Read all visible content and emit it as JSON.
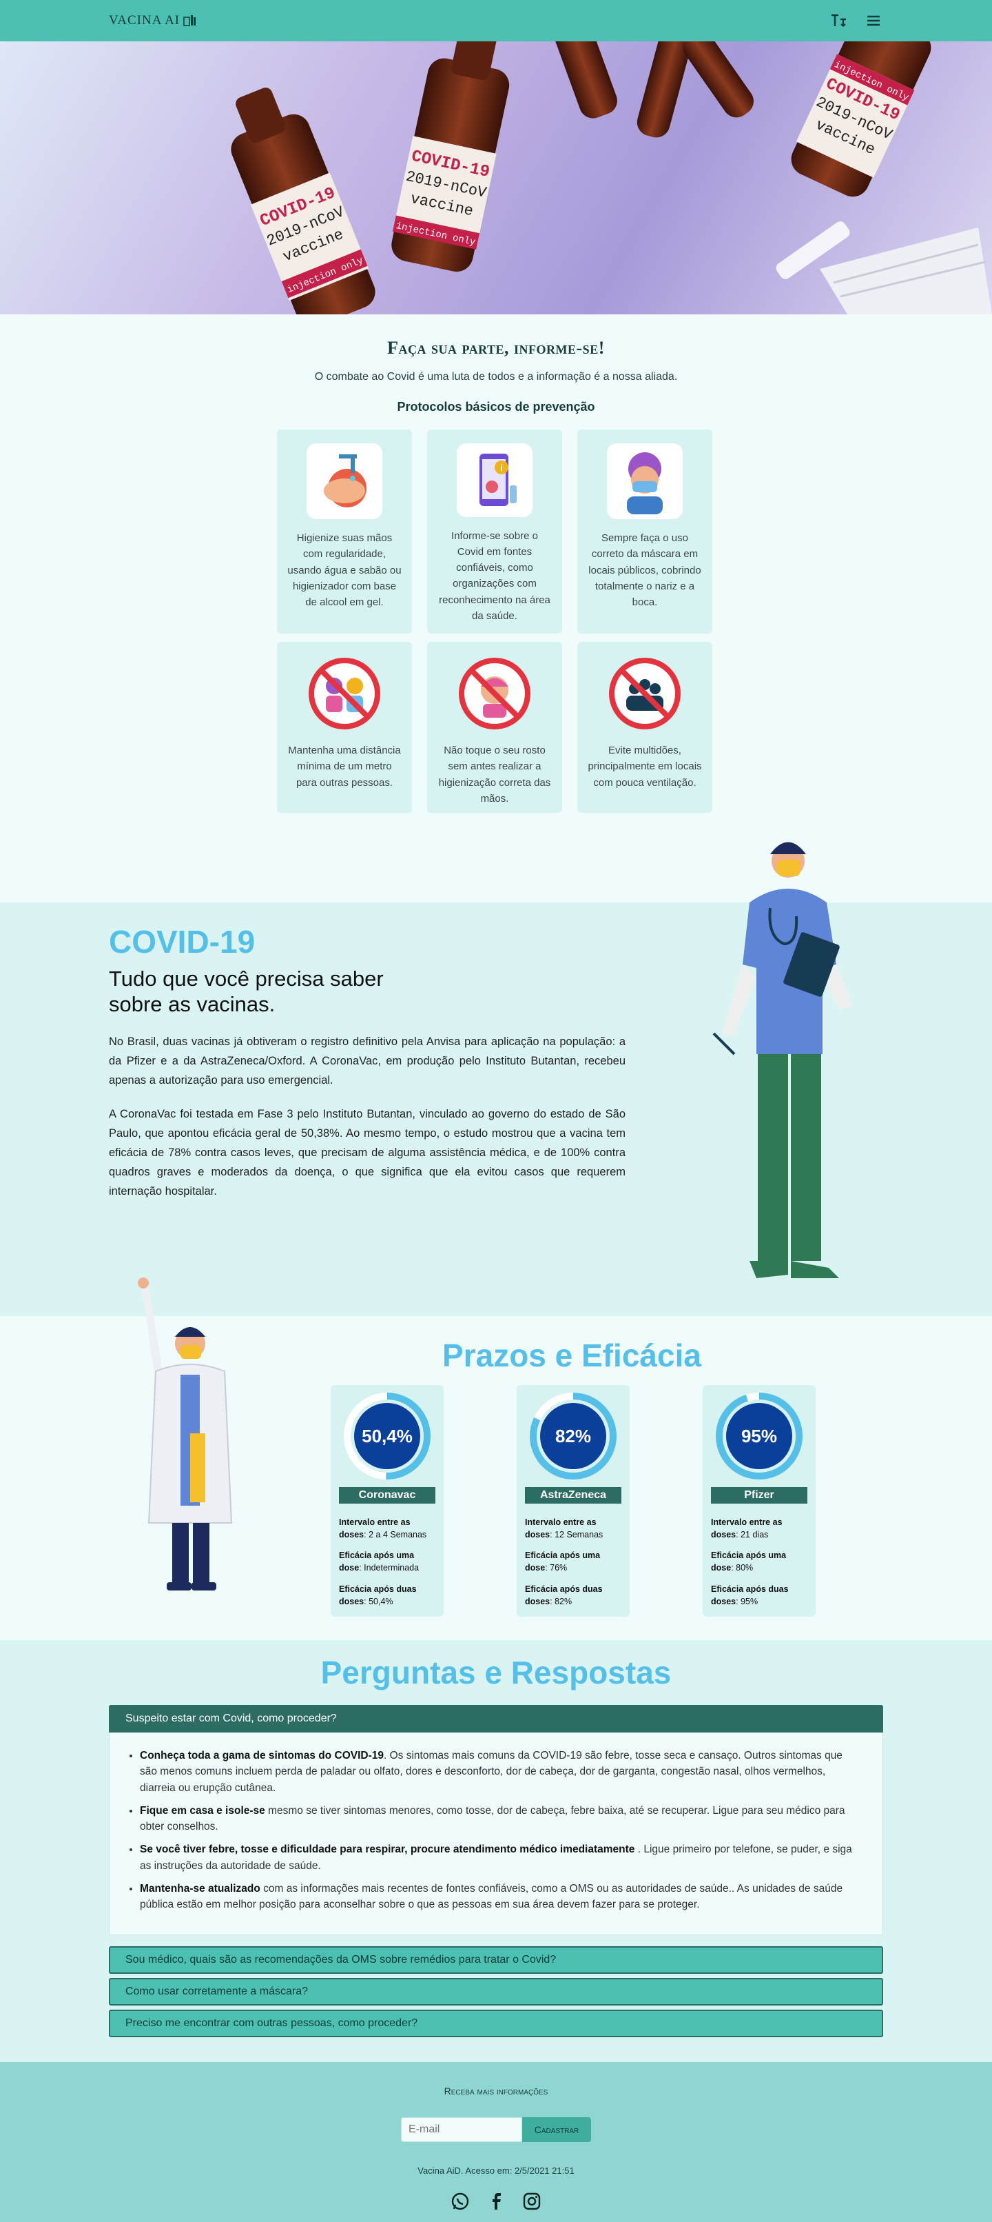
{
  "nav": {
    "brand": "VACINA AI",
    "icons": [
      "text-size-icon",
      "menu-icon"
    ]
  },
  "hero": {
    "bottles": [
      {
        "line1": "COVID-19",
        "line2": "2019-nCoV",
        "line3": "vaccine",
        "line4": "injection only"
      },
      {
        "line1": "COVID-19",
        "line2": "2019-nCoV",
        "line3": "vaccine",
        "line4": "injection only"
      },
      {
        "line1": "COVID-19",
        "line2": "2019-nCoV",
        "line3": "vaccine",
        "line4": "injection only"
      }
    ]
  },
  "info": {
    "title": "Faça sua parte, informe-se!",
    "lead": "O combate ao Covid é uma luta de todos e a informação é a nossa aliada.",
    "subtitle": "Protocolos básicos de prevenção",
    "cards": [
      {
        "icon": "hand-wash-icon",
        "text": "Higienize suas mãos com regularidade, usando água e sabão ou higienizador com base de alcool em gel."
      },
      {
        "icon": "phone-info-icon",
        "text": "Informe-se sobre o Covid em fontes confiáveis, como organizações com reconhecimento na área da saúde."
      },
      {
        "icon": "mask-person-icon",
        "text": "Sempre faça o uso correto da máscara em locais públicos, cobrindo totalmente o nariz e a boca."
      },
      {
        "icon": "no-contact-icon",
        "text": "Mantenha uma distância mínima de um metro para outras pessoas."
      },
      {
        "icon": "no-touch-face-icon",
        "text": "Não toque o seu rosto sem antes realizar a higienização correta das mãos."
      },
      {
        "icon": "no-crowd-icon",
        "text": "Evite multidões, principalmente em locais com pouca ventilação."
      }
    ]
  },
  "covid": {
    "title": "COVID-19",
    "subtitle": "Tudo que você precisa saber sobre as vacinas.",
    "p1": "No Brasil, duas vacinas já obtiveram o registro definitivo pela Anvisa para aplicação na população: a da Pfizer e a da AstraZeneca/Oxford. A CoronaVac, em produção pelo Instituto Butantan, recebeu apenas a autorização para uso emergencial.",
    "p2": "A CoronaVac foi testada em Fase 3 pelo Instituto Butantan, vinculado ao governo do estado de São Paulo, que apontou eficácia geral de 50,38%. Ao mesmo tempo, o estudo mostrou que a vacina tem eficácia de 78% contra casos leves, que precisam de alguma assistência médica, e de 100% contra quadros graves e moderados da doença, o que significa que ela evitou casos que requerem internação hospitalar."
  },
  "prazos": {
    "title": "Prazos e Eficácia",
    "vaccines": [
      {
        "label": "50,4%",
        "percent": 50.4,
        "name": "Coronavac",
        "interval_label": "Intervalo entre as doses",
        "interval": "2 a 4 Semanas",
        "one_label": "Eficácia após uma dose",
        "one": "Indeterminada",
        "two_label": "Eficácia após duas doses",
        "two": "50,4%"
      },
      {
        "label": "82%",
        "percent": 82,
        "name": "AstraZeneca",
        "interval_label": "Intervalo entre as doses",
        "interval": "12 Semanas",
        "one_label": "Eficácia após uma dose",
        "one": "76%",
        "two_label": "Eficácia após duas doses",
        "two": "82%"
      },
      {
        "label": "95%",
        "percent": 95,
        "name": "Pfizer",
        "interval_label": "Intervalo entre as doses",
        "interval": "21 dias",
        "one_label": "Eficácia após uma dose",
        "one": "80%",
        "two_label": "Eficácia após duas doses",
        "two": "95%"
      }
    ],
    "colors": {
      "ring_track": "#ffffff",
      "ring_fill": "#56bfe8",
      "ring_inner": "#0a3f9a"
    }
  },
  "faq": {
    "title": "Perguntas e Respostas",
    "open_question": "Suspeito estar com Covid, como proceder?",
    "answers": [
      {
        "bold": "Conheça toda a gama de sintomas do COVID-19",
        "text": ". Os sintomas mais comuns da COVID-19 são febre, tosse seca e cansaço. Outros sintomas que são menos comuns incluem perda de paladar ou olfato, dores e desconforto, dor de cabeça, dor de garganta, congestão nasal, olhos vermelhos, diarreia ou erupção cutânea."
      },
      {
        "bold": "Fique em casa e isole-se",
        "text": " mesmo se tiver sintomas menores, como tosse, dor de cabeça, febre baixa, até se recuperar. Ligue para seu médico para obter conselhos."
      },
      {
        "bold": "Se você tiver febre, tosse e dificuldade para respirar, procure atendimento médico imediatamente",
        "text": " . Ligue primeiro por telefone, se puder, e siga as instruções da autoridade de saúde."
      },
      {
        "bold": "Mantenha-se atualizado",
        "text": " com as informações mais recentes de fontes confiáveis, como a OMS ou as autoridades de saúde.. As unidades de saúde pública estão em melhor posição para aconselhar sobre o que as pessoas em sua área devem fazer para se proteger."
      }
    ],
    "questions": [
      "Sou médico, quais são as recomendações da OMS sobre remédios para tratar o Covid?",
      "Como usar corretamente a máscara?",
      "Preciso me encontrar com outras pessoas, como proceder?"
    ]
  },
  "footer": {
    "newsletter": "Receba mais informações",
    "email_placeholder": "E-mail",
    "button": "Cadastrar",
    "access": "Vacina AiD. Acesso em: 2/5/2021 21:51",
    "socials": [
      "whatsapp-icon",
      "facebook-icon",
      "instagram-icon"
    ]
  }
}
